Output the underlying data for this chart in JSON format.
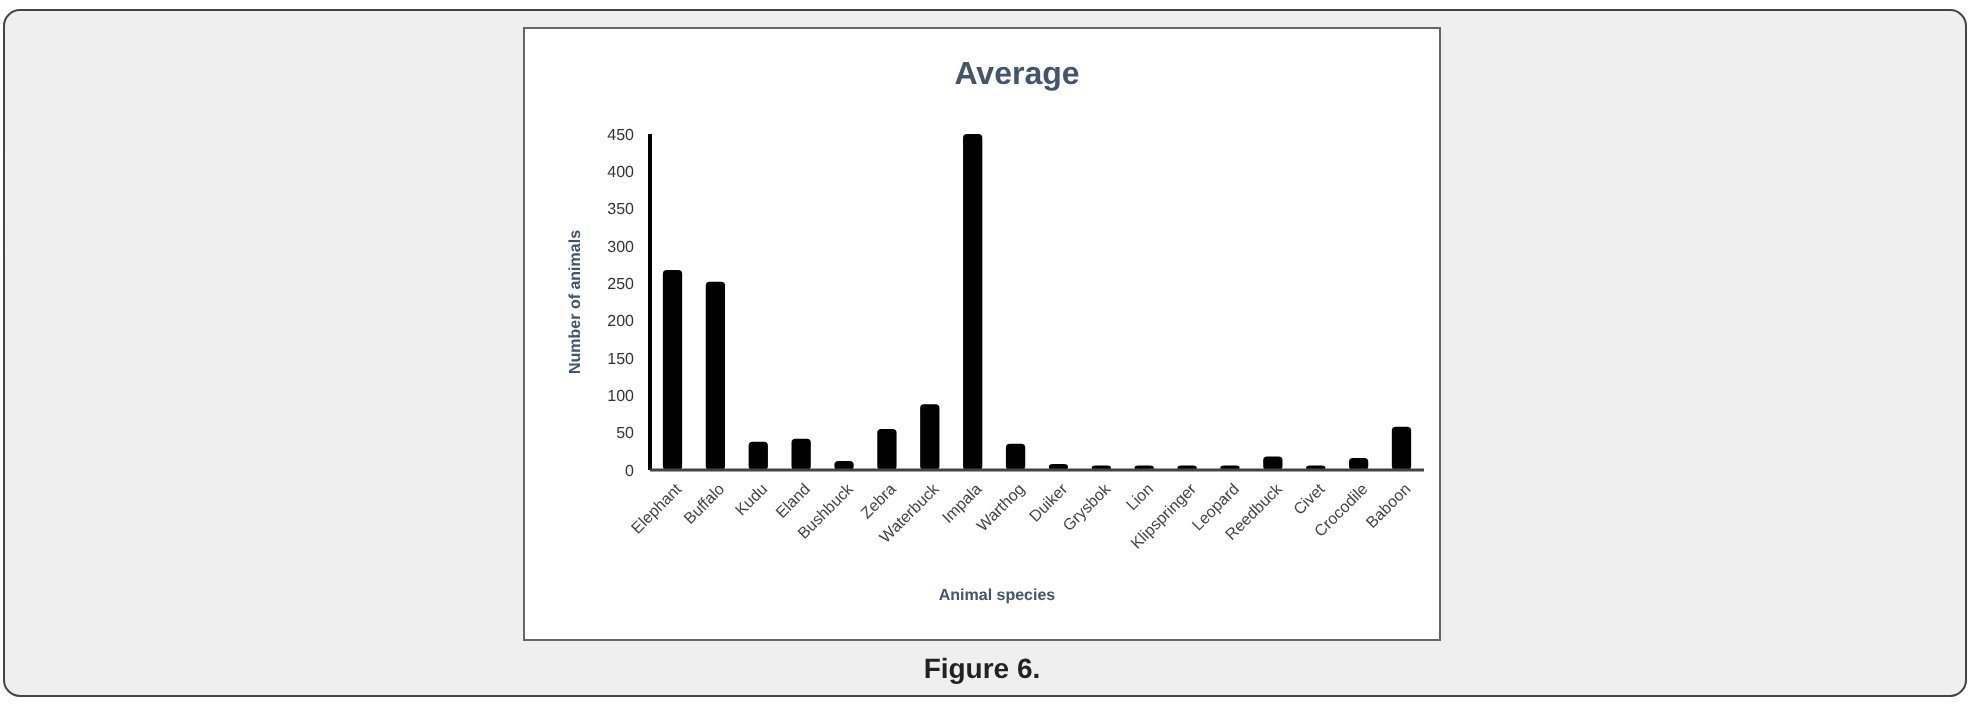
{
  "chart_data": {
    "type": "bar",
    "title": "Average",
    "xlabel": "Animal species",
    "ylabel": "Number of animals",
    "categories": [
      "Elephant",
      "Buffalo",
      "Kudu",
      "Eland",
      "Bushbuck",
      "Zebra",
      "Waterbuck",
      "Impala",
      "Warthog",
      "Duiker",
      "Grysbok",
      "Lion",
      "Klipspringer",
      "Leopard",
      "Reedbuck",
      "Civet",
      "Crocodile",
      "Baboon"
    ],
    "values": [
      268,
      252,
      38,
      42,
      12,
      55,
      88,
      450,
      35,
      8,
      6,
      6,
      6,
      6,
      18,
      6,
      16,
      58
    ],
    "color": "#000000",
    "ylim": [
      0,
      450
    ],
    "yticks": [
      0,
      50,
      100,
      150,
      200,
      250,
      300,
      350,
      400,
      450
    ],
    "grid": false,
    "annotations": [
      "Figure 6."
    ]
  }
}
